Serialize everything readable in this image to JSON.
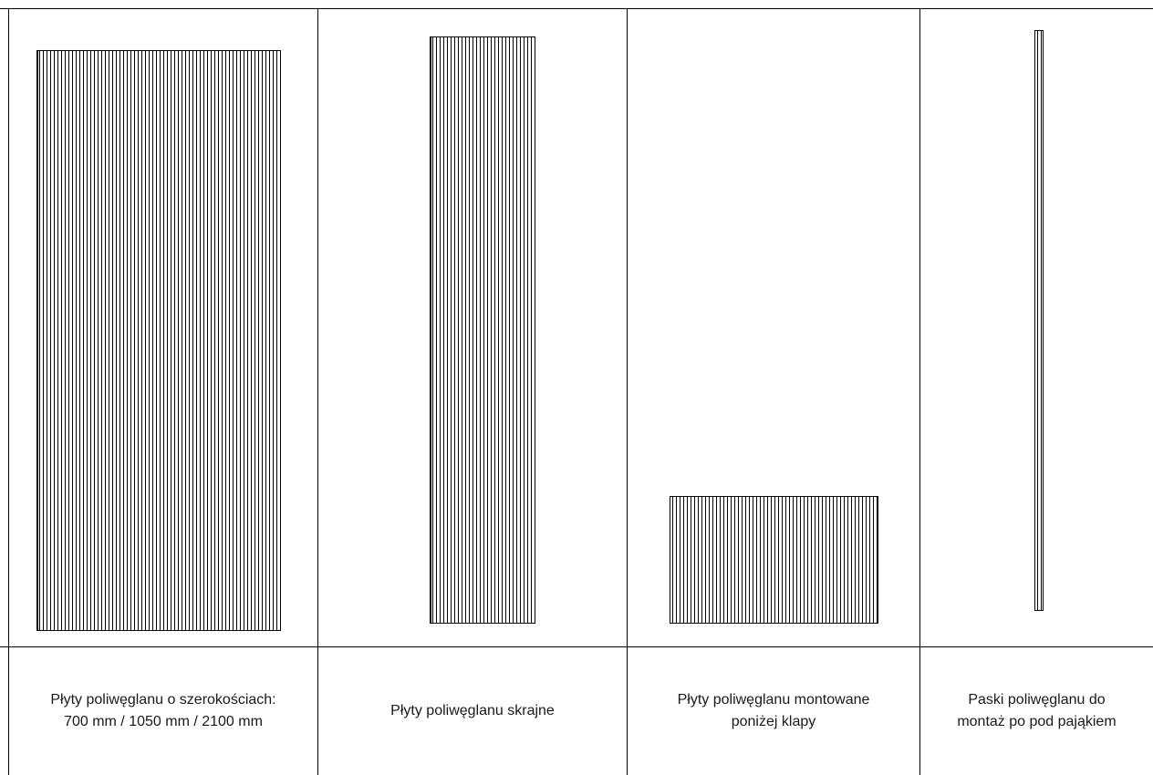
{
  "table": {
    "columns": [
      {
        "caption": "Płyty poliwęglanu o szerokościach:\n700 mm / 1050 mm / 2100 mm"
      },
      {
        "caption": "Płyty poliwęglanu skrajne"
      },
      {
        "caption": "Płyty poliwęglanu montowane\nponiżej klapy"
      },
      {
        "caption": "Paski poliwęglanu do\nmontaż po pod pająkiem"
      }
    ]
  }
}
